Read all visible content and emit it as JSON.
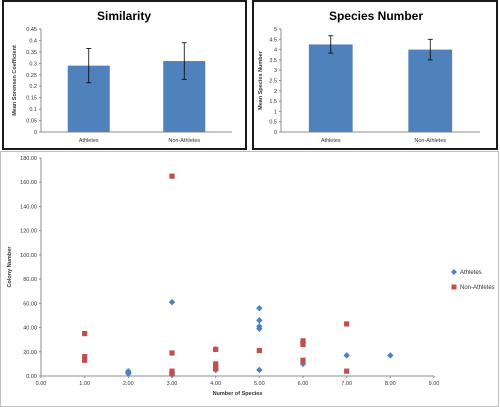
{
  "chart_data": [
    {
      "type": "bar",
      "title": "Similarity",
      "ylabel": "Mean Sorensen Coefficient",
      "xlabel": "",
      "categories": [
        "Athletes",
        "Non-Athletes"
      ],
      "values": [
        0.29,
        0.31
      ],
      "error": [
        0.075,
        0.08
      ],
      "ylim": [
        0,
        0.45
      ],
      "yticks": [
        "0",
        "0.05",
        "0.1",
        "0.15",
        "0.2",
        "0.25",
        "0.3",
        "0.35",
        "0.4",
        "0.45"
      ],
      "ytick_values": [
        0,
        0.05,
        0.1,
        0.15,
        0.2,
        0.25,
        0.3,
        0.35,
        0.4,
        0.45
      ],
      "bar_color": "#4f81bd"
    },
    {
      "type": "bar",
      "title": "Species Number",
      "ylabel": "Mean Species Number",
      "xlabel": "",
      "categories": [
        "Athletes",
        "Non-Athletes"
      ],
      "values": [
        4.25,
        4.0
      ],
      "error": [
        0.42,
        0.5
      ],
      "ylim": [
        0,
        5
      ],
      "yticks": [
        "0",
        "0.5",
        "1",
        "1.5",
        "2",
        "2.5",
        "3",
        "3.5",
        "4",
        "4.5",
        "5"
      ],
      "ytick_values": [
        0,
        0.5,
        1,
        1.5,
        2,
        2.5,
        3,
        3.5,
        4,
        4.5,
        5
      ],
      "bar_color": "#4f81bd"
    },
    {
      "type": "scatter",
      "title": "",
      "xlabel": "Number of Species",
      "ylabel": "Colony Number",
      "xlim": [
        0,
        9
      ],
      "ylim": [
        0,
        180
      ],
      "xticks": [
        "0.00",
        "1.00",
        "2.00",
        "3.00",
        "4.00",
        "5.00",
        "6.00",
        "7.00",
        "8.00",
        "9.00"
      ],
      "xtick_values": [
        0,
        1,
        2,
        3,
        4,
        5,
        6,
        7,
        8,
        9
      ],
      "yticks": [
        "0.00",
        "20.00",
        "40.00",
        "60.00",
        "80.00",
        "100.00",
        "120.00",
        "140.00",
        "160.00",
        "180.00"
      ],
      "ytick_values": [
        0,
        20,
        40,
        60,
        80,
        100,
        120,
        140,
        160,
        180
      ],
      "legend_position": "right",
      "grid": false,
      "series": [
        {
          "name": "Athletes",
          "marker": "diamond",
          "color": "#4f81bd",
          "points": [
            [
              2,
              4
            ],
            [
              2,
              2
            ],
            [
              2,
              3
            ],
            [
              3,
              61
            ],
            [
              3,
              1
            ],
            [
              3,
              3
            ],
            [
              4,
              22
            ],
            [
              4,
              5
            ],
            [
              5,
              56
            ],
            [
              5,
              46
            ],
            [
              5,
              41
            ],
            [
              5,
              39
            ],
            [
              5,
              5
            ],
            [
              6,
              10
            ],
            [
              6,
              28
            ],
            [
              7,
              17
            ],
            [
              8,
              17
            ]
          ]
        },
        {
          "name": "Non-Athletes",
          "marker": "square",
          "color": "#c0504d",
          "points": [
            [
              1,
              35
            ],
            [
              1,
              16
            ],
            [
              1,
              13
            ],
            [
              3,
              165
            ],
            [
              3,
              19
            ],
            [
              3,
              4
            ],
            [
              3,
              2
            ],
            [
              4,
              22
            ],
            [
              4,
              10
            ],
            [
              4,
              8
            ],
            [
              4,
              6
            ],
            [
              5,
              21
            ],
            [
              6,
              29
            ],
            [
              6,
              26
            ],
            [
              6,
              13
            ],
            [
              7,
              43
            ],
            [
              7,
              4
            ]
          ]
        }
      ]
    }
  ]
}
